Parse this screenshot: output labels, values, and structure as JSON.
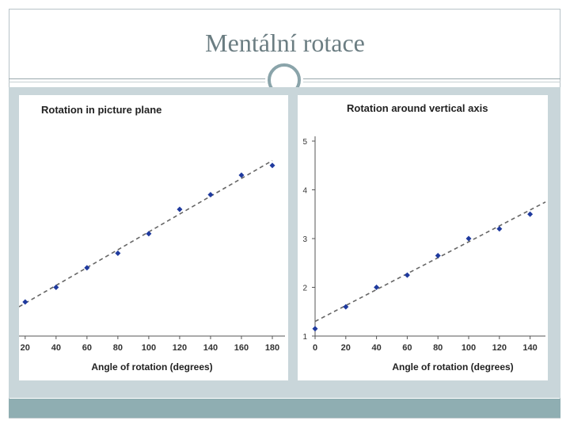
{
  "slide": {
    "title": "Mentální rotace",
    "colors": {
      "frame": "#b7c3c8",
      "panel": "#c9d6da",
      "bottom_bar": "#8faeb2",
      "title_text": "#6b7d82",
      "point": "#1f3a9e",
      "trend": "#666666"
    }
  },
  "chart_data": [
    {
      "type": "scatter",
      "title": "Rotation in picture plane",
      "xlabel": "Angle of rotation (degrees)",
      "ylabel": "",
      "xlim": [
        16,
        180
      ],
      "ylim": [
        1,
        5
      ],
      "xticks": [
        20,
        40,
        60,
        80,
        100,
        120,
        140,
        160,
        180
      ],
      "x": [
        20,
        40,
        60,
        80,
        100,
        120,
        140,
        160,
        180
      ],
      "y": [
        1.7,
        2.0,
        2.4,
        2.7,
        3.1,
        3.6,
        3.9,
        4.3,
        4.5
      ],
      "trendline": {
        "x": [
          16,
          180
        ],
        "y": [
          1.6,
          4.6
        ],
        "style": "dashed"
      }
    },
    {
      "type": "scatter",
      "title": "Rotation around vertical axis",
      "xlabel": "Angle of rotation (degrees)",
      "ylabel": "",
      "xlim": [
        0,
        150
      ],
      "ylim": [
        1,
        5
      ],
      "xticks": [
        0,
        20,
        40,
        60,
        80,
        100,
        120,
        140
      ],
      "yticks": [
        1,
        2,
        3,
        4,
        5
      ],
      "x": [
        0,
        20,
        40,
        60,
        80,
        100,
        120,
        140
      ],
      "y": [
        1.15,
        1.6,
        2.0,
        2.25,
        2.65,
        3.0,
        3.2,
        3.5
      ],
      "trendline": {
        "x": [
          0,
          150
        ],
        "y": [
          1.3,
          3.75
        ],
        "style": "dashed"
      }
    }
  ]
}
